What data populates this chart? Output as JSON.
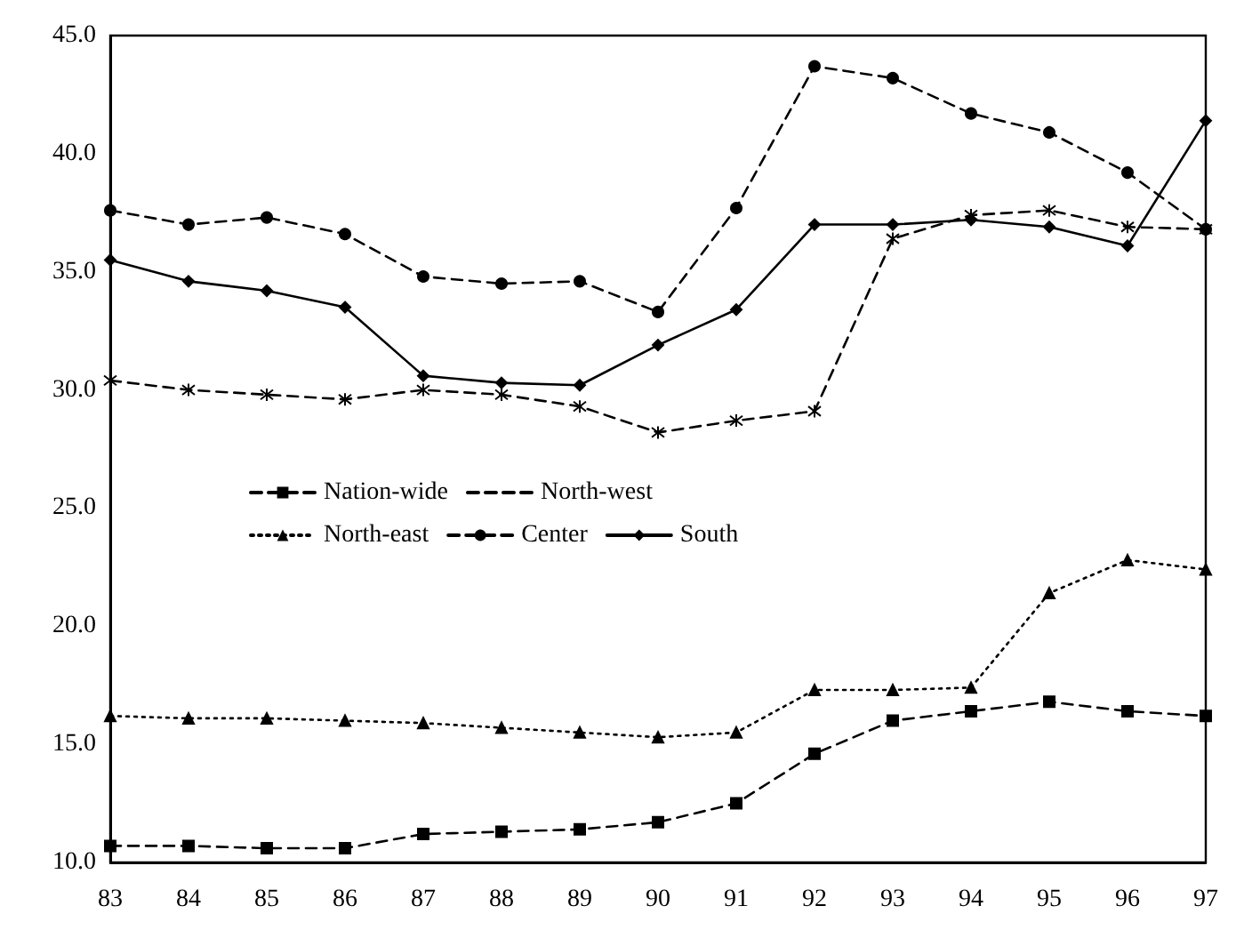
{
  "chart_data": {
    "type": "line",
    "categories": [
      "83",
      "84",
      "85",
      "86",
      "87",
      "88",
      "89",
      "90",
      "91",
      "92",
      "93",
      "94",
      "95",
      "96",
      "97"
    ],
    "ylim": [
      10,
      45
    ],
    "yticks": [
      {
        "value": 10,
        "label": "10.0"
      },
      {
        "value": 15,
        "label": "15.0"
      },
      {
        "value": 20,
        "label": "20.0"
      },
      {
        "value": 25,
        "label": "25.0"
      },
      {
        "value": 30,
        "label": "30.0"
      },
      {
        "value": 35,
        "label": "35.0"
      },
      {
        "value": 40,
        "label": "40.0"
      },
      {
        "value": 45,
        "label": "45.0"
      }
    ],
    "grid": false,
    "legend": "left",
    "series": [
      {
        "name": "Nation-wide",
        "color": "#000000",
        "marker": "square",
        "line_style": "dashed",
        "values": [
          10.7,
          10.7,
          10.6,
          10.6,
          11.2,
          11.3,
          11.4,
          11.7,
          12.5,
          14.6,
          16.0,
          16.4,
          16.8,
          16.4,
          16.2
        ]
      },
      {
        "name": "North-west",
        "color": "#000000",
        "marker": "cross",
        "line_style": "dashed",
        "values": [
          30.4,
          30.0,
          29.8,
          29.6,
          30.0,
          29.8,
          29.3,
          28.2,
          28.7,
          29.1,
          36.4,
          37.4,
          37.6,
          36.9,
          36.8
        ]
      },
      {
        "name": "North-east",
        "color": "#000000",
        "marker": "triangle",
        "line_style": "dotted",
        "values": [
          16.2,
          16.1,
          16.1,
          16.0,
          15.9,
          15.7,
          15.5,
          15.3,
          15.5,
          17.3,
          17.3,
          17.4,
          21.4,
          22.8,
          22.4
        ]
      },
      {
        "name": "Center",
        "color": "#000000",
        "marker": "circle",
        "line_style": "dashed",
        "values": [
          37.6,
          37.0,
          37.3,
          36.6,
          34.8,
          34.5,
          34.6,
          33.3,
          37.7,
          43.7,
          43.2,
          41.7,
          40.9,
          39.2,
          36.8
        ]
      },
      {
        "name": "South",
        "color": "#000000",
        "marker": "diamond",
        "line_style": "solid",
        "values": [
          35.5,
          34.6,
          34.2,
          33.5,
          30.6,
          30.3,
          30.2,
          31.9,
          33.4,
          37.0,
          37.0,
          37.2,
          36.9,
          36.1,
          41.4
        ]
      }
    ]
  }
}
